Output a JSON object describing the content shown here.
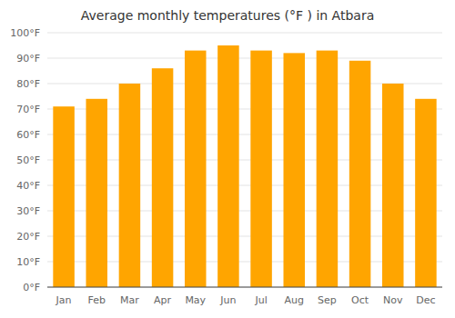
{
  "chart_data": {
    "type": "bar",
    "title": "Average monthly temperatures (°F ) in Atbara",
    "categories": [
      "Jan",
      "Feb",
      "Mar",
      "Apr",
      "May",
      "Jun",
      "Jul",
      "Aug",
      "Sep",
      "Oct",
      "Nov",
      "Dec"
    ],
    "values": [
      71,
      74,
      80,
      86,
      93,
      95,
      93,
      92,
      93,
      89,
      80,
      74
    ],
    "color": "#FFA500",
    "ylim": [
      0,
      100
    ],
    "yticks": [
      {
        "value": 0,
        "label": "0°F"
      },
      {
        "value": 10,
        "label": "10°F"
      },
      {
        "value": 20,
        "label": "20°F"
      },
      {
        "value": 30,
        "label": "30°F"
      },
      {
        "value": 40,
        "label": "40°F"
      },
      {
        "value": 50,
        "label": "50°F"
      },
      {
        "value": 60,
        "label": "60°F"
      },
      {
        "value": 70,
        "label": "70°F"
      },
      {
        "value": 80,
        "label": "80°F"
      },
      {
        "value": 90,
        "label": "90°F"
      },
      {
        "value": 100,
        "label": "100°F"
      }
    ],
    "grid": true
  }
}
